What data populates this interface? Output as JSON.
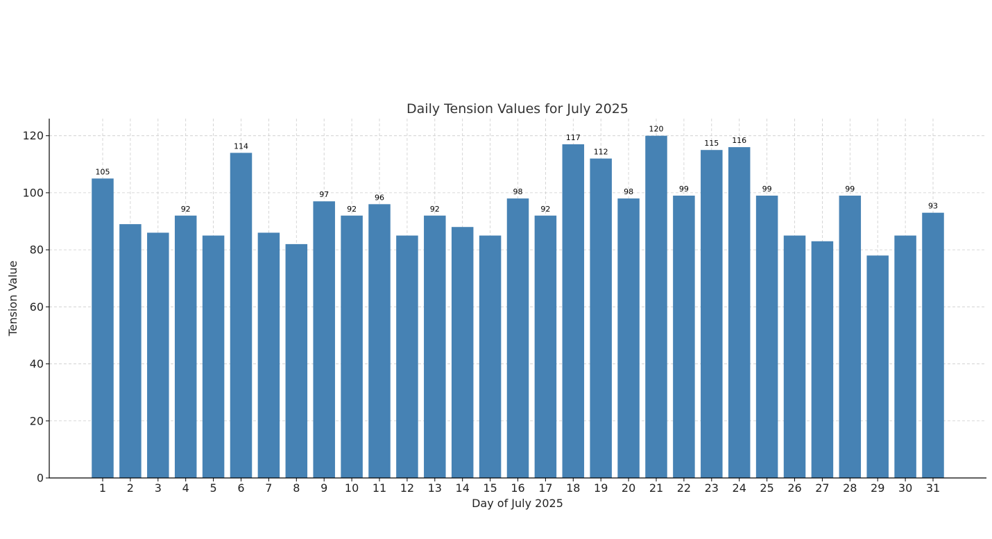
{
  "chart_data": {
    "type": "bar",
    "title": "Daily Tension Values for July 2025",
    "xlabel": "Day of July 2025",
    "ylabel": "Tension Value",
    "categories": [
      "1",
      "2",
      "3",
      "4",
      "5",
      "6",
      "7",
      "8",
      "9",
      "10",
      "11",
      "12",
      "13",
      "14",
      "15",
      "16",
      "17",
      "18",
      "19",
      "20",
      "21",
      "22",
      "23",
      "24",
      "25",
      "26",
      "27",
      "28",
      "29",
      "30",
      "31"
    ],
    "values": [
      105,
      89,
      86,
      92,
      85,
      114,
      86,
      82,
      97,
      92,
      96,
      85,
      92,
      88,
      85,
      98,
      92,
      117,
      112,
      98,
      120,
      99,
      115,
      116,
      99,
      85,
      83,
      99,
      78,
      85,
      93
    ],
    "data_labels": [
      "105",
      "",
      "",
      "92",
      "",
      "114",
      "",
      "",
      "97",
      "92",
      "96",
      "",
      "92",
      "",
      "",
      "98",
      "92",
      "117",
      "112",
      "98",
      "120",
      "99",
      "115",
      "116",
      "99",
      "",
      "",
      "99",
      "",
      "",
      "93"
    ],
    "yticks": [
      0,
      20,
      40,
      60,
      80,
      100,
      120
    ],
    "ylim": [
      0,
      126
    ],
    "grid": true,
    "bar_color": "#4682b4",
    "grid_color": "#cccccc",
    "axis_color": "#000000"
  }
}
